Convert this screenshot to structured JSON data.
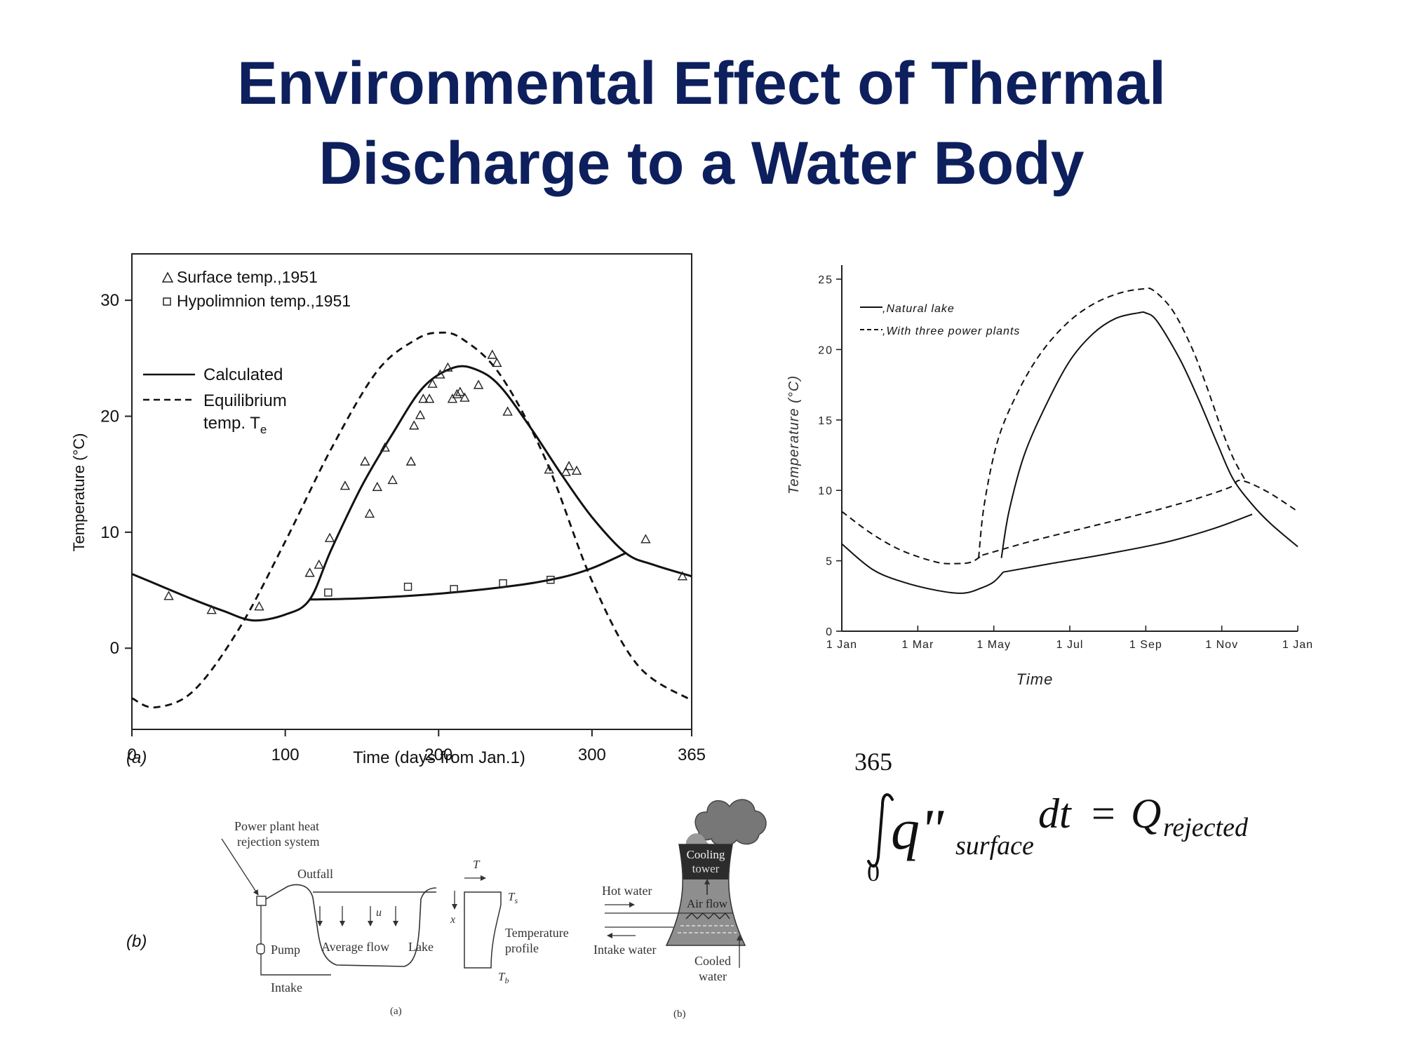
{
  "slide": {
    "title_line1": "Environmental Effect of Thermal",
    "title_line2": "Discharge to a Water Body",
    "color_title": "#0d1f5c"
  },
  "chart_data": [
    {
      "type": "line",
      "panel_label": "(a)",
      "xlabel": "Time (days from Jan.1)",
      "ylabel": "Temperature (°C)",
      "xlim": [
        0,
        365
      ],
      "ylim": [
        -7,
        34
      ],
      "xticks": [
        0,
        100,
        200,
        300,
        365
      ],
      "yticks": [
        0,
        10,
        20,
        30
      ],
      "grid": false,
      "legend_markers": [
        {
          "symbol": "triangle",
          "label": "Surface temp.,1951"
        },
        {
          "symbol": "square",
          "label": "Hypolimnion temp.,1951"
        }
      ],
      "legend_lines": [
        {
          "style": "solid",
          "label": "Calculated"
        },
        {
          "style": "dashed",
          "label": "Equilibrium",
          "label2": "temp. T",
          "label2_sub": "e"
        }
      ],
      "series": [
        {
          "name": "Calculated",
          "style": "solid",
          "x": [
            0,
            20,
            40,
            60,
            79,
            100,
            116,
            130,
            150,
            170,
            190,
            210,
            225,
            240,
            260,
            280,
            300,
            322,
            340,
            365
          ],
          "y": [
            6.4,
            5.3,
            4.2,
            3.2,
            2.4,
            2.9,
            4.2,
            8.5,
            14.0,
            18.5,
            22.5,
            24.2,
            24.0,
            22.6,
            19.0,
            15.0,
            11.3,
            8.2,
            7.2,
            6.2
          ]
        },
        {
          "name": "Calculated (hypolimnion)",
          "style": "solid",
          "x": [
            116,
            150,
            200,
            250,
            280,
            300,
            322
          ],
          "y": [
            4.2,
            4.3,
            4.7,
            5.4,
            6.1,
            6.9,
            8.2
          ]
        },
        {
          "name": "Equilibrium temp. Te",
          "style": "dashed",
          "x": [
            0,
            15,
            40,
            70,
            100,
            130,
            160,
            185,
            200,
            215,
            240,
            270,
            300,
            330,
            365
          ],
          "y": [
            -4.3,
            -5.1,
            -3.7,
            1.7,
            9.2,
            17.2,
            23.9,
            26.6,
            27.2,
            26.7,
            23.6,
            16.2,
            5.8,
            -1.5,
            -4.5
          ]
        }
      ],
      "points_surface": {
        "x": [
          24,
          52,
          83,
          116,
          122,
          129,
          139,
          152,
          155,
          160,
          165,
          170,
          182,
          184,
          188,
          190,
          194,
          196,
          201,
          206,
          209,
          212,
          214,
          217,
          226,
          235,
          238,
          245,
          272,
          283,
          285,
          290,
          335,
          359
        ],
        "y": [
          4.5,
          3.3,
          3.6,
          6.5,
          7.2,
          9.5,
          14.0,
          16.1,
          11.6,
          13.9,
          17.3,
          14.5,
          16.1,
          19.2,
          20.1,
          21.5,
          21.5,
          22.8,
          23.6,
          24.2,
          21.5,
          21.9,
          22.1,
          21.6,
          22.7,
          25.3,
          24.6,
          20.4,
          15.4,
          15.2,
          15.7,
          15.3,
          9.4,
          6.2
        ]
      },
      "points_hypolimnion": {
        "x": [
          128,
          180,
          210,
          242,
          273
        ],
        "y": [
          4.8,
          5.3,
          5.1,
          5.6,
          5.9
        ]
      }
    },
    {
      "type": "line",
      "xlabel": "Time",
      "ylabel": "Temperature (°C)",
      "ylim": [
        0,
        25
      ],
      "yticks": [
        0,
        5,
        10,
        15,
        20,
        25
      ],
      "ytick_labels": [
        "0",
        "5",
        "10",
        "15",
        "20",
        "25"
      ],
      "categories": [
        "1 Jan",
        "1 Mar",
        "1 May",
        "1 Jul",
        "1 Sep",
        "1 Nov",
        "1 Jan"
      ],
      "x_unit": "months from 1 Jan",
      "category_positions": [
        0,
        2,
        4,
        6,
        8,
        10,
        12
      ],
      "grid": false,
      "legend": [
        {
          "style": "solid",
          "label": ",Natural lake"
        },
        {
          "style": "dashed",
          "label": ",With three power plants"
        }
      ],
      "series": [
        {
          "name": "Natural lake",
          "style": "solid",
          "x": [
            0,
            0.8,
            1.6,
            2.5,
            3.2,
            3.7,
            4.0,
            4.25
          ],
          "y": [
            6.2,
            4.4,
            3.5,
            2.9,
            2.7,
            3.1,
            3.5,
            4.2
          ]
        },
        {
          "name": "Natural lake",
          "style": "solid",
          "x": [
            4.2,
            4.4,
            4.8,
            5.4,
            6.0,
            6.6,
            7.2,
            7.8,
            8.0,
            8.3,
            8.9,
            9.4,
            9.9,
            10.3,
            10.8,
            11.3,
            12.0
          ],
          "y": [
            5.2,
            8.5,
            12.5,
            16.2,
            19.2,
            21.1,
            22.2,
            22.6,
            22.6,
            22.0,
            19.3,
            16.4,
            13.2,
            10.8,
            9.0,
            7.6,
            6.0
          ]
        },
        {
          "name": "Natural lake",
          "style": "solid",
          "x": [
            4.25,
            5.5,
            7.0,
            8.5,
            9.8,
            10.8
          ],
          "y": [
            4.2,
            4.8,
            5.5,
            6.3,
            7.3,
            8.3
          ]
        },
        {
          "name": "With three power plants",
          "style": "dashed",
          "x": [
            0,
            0.8,
            1.6,
            2.5,
            3.0,
            3.4,
            3.7
          ],
          "y": [
            8.5,
            6.9,
            5.7,
            4.9,
            4.8,
            4.9,
            5.4
          ]
        },
        {
          "name": "With three power plants",
          "style": "dashed",
          "x": [
            3.6,
            3.75,
            4.1,
            4.6,
            5.2,
            5.9,
            6.6,
            7.3,
            7.9,
            8.2,
            8.7,
            9.2,
            9.6,
            10.0,
            10.3,
            10.6
          ],
          "y": [
            5.2,
            9.0,
            13.5,
            16.8,
            19.6,
            21.8,
            23.2,
            24.0,
            24.3,
            24.2,
            22.8,
            20.2,
            17.4,
            14.3,
            12.3,
            10.8
          ]
        },
        {
          "name": "With three power plants",
          "style": "dashed",
          "x": [
            3.7,
            5.0,
            6.5,
            8.0,
            9.2,
            10.2,
            10.5,
            11.2,
            12.0
          ],
          "y": [
            5.4,
            6.4,
            7.4,
            8.4,
            9.3,
            10.2,
            10.7,
            9.9,
            8.5
          ]
        }
      ]
    }
  ],
  "equation": {
    "upper_limit": "365",
    "lower_limit": "0",
    "integrand": "q\"",
    "integrand_sub": "surface",
    "dt": "dt",
    "equals": "=",
    "result": "Q",
    "result_sub": "rejected"
  },
  "panel_b": {
    "label": "(b)",
    "lake_diagram": {
      "title_line1": "Power plant heat",
      "title_line2": "rejection system",
      "outfall": "Outfall",
      "pump": "Pump",
      "intake": "Intake",
      "avg_flow": "Average flow",
      "u": "u",
      "lake": "Lake",
      "T": "T",
      "Ts": "T",
      "Ts_sub": "s",
      "Tb": "T",
      "Tb_sub": "b",
      "x": "x",
      "temp_profile_line1": "Temperature",
      "temp_profile_line2": "profile",
      "caption": "(a)"
    },
    "tower_diagram": {
      "cooling_line1": "Cooling",
      "cooling_line2": "tower",
      "air_flow": "Air flow",
      "hot_water": "Hot water",
      "intake_water": "Intake water",
      "cooled_line1": "Cooled",
      "cooled_line2": "water",
      "caption": "(b)"
    }
  }
}
